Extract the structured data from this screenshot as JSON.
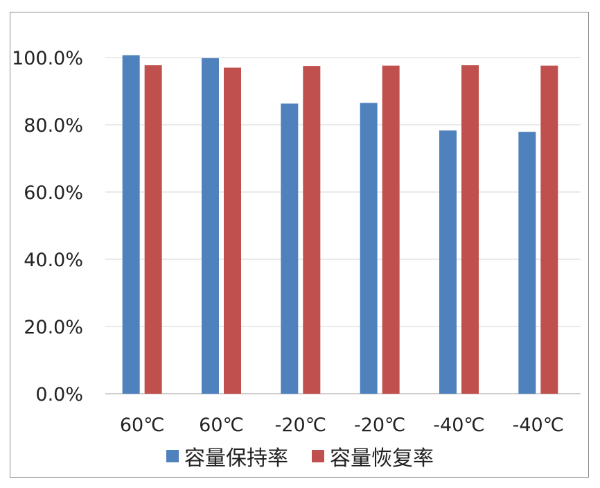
{
  "chart_data": {
    "type": "bar",
    "categories": [
      "60℃",
      "60℃",
      "-20℃",
      "-20℃",
      "-40℃",
      "-40℃"
    ],
    "series": [
      {
        "name": "容量保持率",
        "color": "#4f81bd",
        "values": [
          100.7,
          99.8,
          86.3,
          86.5,
          78.3,
          77.9
        ]
      },
      {
        "name": "容量恢复率",
        "color": "#c0504d",
        "values": [
          97.7,
          97.0,
          97.5,
          97.6,
          97.7,
          97.6
        ]
      }
    ],
    "y_ticks": [
      "0.0%",
      "20.0%",
      "40.0%",
      "60.0%",
      "80.0%",
      "100.0%"
    ],
    "ylim": [
      0,
      100
    ],
    "grid": true,
    "legend_position": "bottom"
  }
}
